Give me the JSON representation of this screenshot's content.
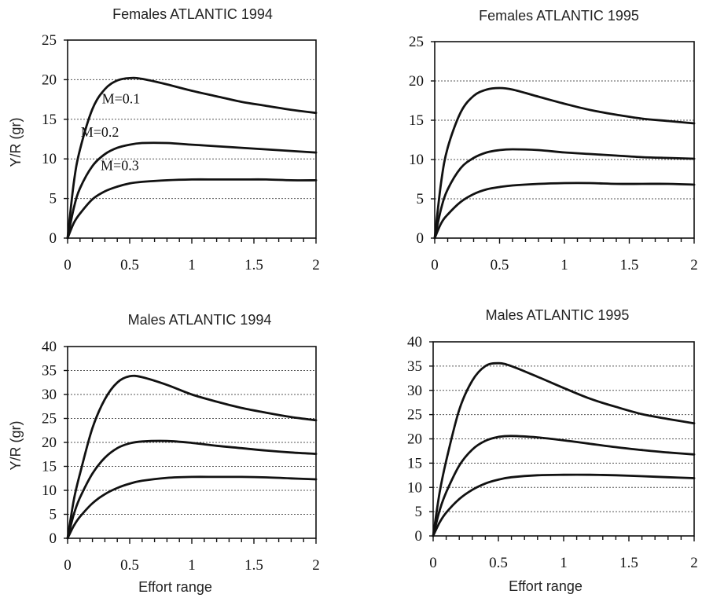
{
  "chart_data": [
    {
      "type": "line",
      "title": "Females ATLANTIC 1994",
      "xlabel": "",
      "ylabel": "Y/R (gr)",
      "xlim": [
        0,
        2
      ],
      "ylim": [
        0,
        25
      ],
      "xticks": [
        0,
        0.5,
        1,
        1.5,
        2
      ],
      "xtick_labels": [
        "0",
        "0.5",
        "1",
        "1.5",
        "2"
      ],
      "yticks": [
        0,
        5,
        10,
        15,
        20,
        25
      ],
      "ytick_labels": [
        "0",
        "5",
        "10",
        "15",
        "20",
        "25"
      ],
      "grid": "horizontal-dotted",
      "x": [
        0,
        0.05,
        0.1,
        0.2,
        0.3,
        0.4,
        0.5,
        0.6,
        0.8,
        1.0,
        1.2,
        1.4,
        1.6,
        1.8,
        2.0
      ],
      "series": [
        {
          "name": "M=0.1",
          "values": [
            0,
            7.0,
            11.2,
            16.3,
            18.8,
            19.9,
            20.2,
            20.1,
            19.4,
            18.6,
            17.9,
            17.2,
            16.7,
            16.2,
            15.8
          ]
        },
        {
          "name": "M=0.2",
          "values": [
            0,
            3.8,
            6.3,
            9.1,
            10.6,
            11.4,
            11.8,
            12.0,
            12.0,
            11.8,
            11.6,
            11.4,
            11.2,
            11.0,
            10.8
          ]
        },
        {
          "name": "M=0.3",
          "values": [
            0,
            1.9,
            3.1,
            4.9,
            5.9,
            6.5,
            6.9,
            7.1,
            7.3,
            7.4,
            7.4,
            7.4,
            7.4,
            7.3,
            7.3
          ]
        }
      ],
      "annotations": [
        {
          "text": "M=0.1",
          "x": 0.43,
          "y": 17.0
        },
        {
          "text": "M=0.2",
          "x": 0.26,
          "y": 12.8
        },
        {
          "text": "M=0.3",
          "x": 0.42,
          "y": 8.6
        }
      ]
    },
    {
      "type": "line",
      "title": "Females ATLANTIC 1995",
      "xlabel": "",
      "ylabel": "",
      "xlim": [
        0,
        2
      ],
      "ylim": [
        0,
        25
      ],
      "xticks": [
        0,
        0.5,
        1,
        1.5,
        2
      ],
      "xtick_labels": [
        "0",
        "0.5",
        "1",
        "1.5",
        "2"
      ],
      "yticks": [
        0,
        5,
        10,
        15,
        20,
        25
      ],
      "ytick_labels": [
        "0",
        "5",
        "10",
        "15",
        "20",
        "25"
      ],
      "grid": "horizontal-dotted",
      "x": [
        0,
        0.05,
        0.1,
        0.2,
        0.3,
        0.4,
        0.5,
        0.6,
        0.8,
        1.0,
        1.2,
        1.4,
        1.6,
        1.8,
        2.0
      ],
      "series": [
        {
          "name": "",
          "values": [
            0,
            7.2,
            11.5,
            16.0,
            18.1,
            18.9,
            19.1,
            18.9,
            18.0,
            17.1,
            16.3,
            15.7,
            15.2,
            14.9,
            14.6
          ]
        },
        {
          "name": "",
          "values": [
            0,
            3.8,
            6.2,
            8.9,
            10.2,
            10.9,
            11.2,
            11.3,
            11.2,
            10.9,
            10.7,
            10.5,
            10.3,
            10.2,
            10.1
          ]
        },
        {
          "name": "",
          "values": [
            0,
            1.9,
            3.0,
            4.6,
            5.6,
            6.2,
            6.5,
            6.7,
            6.9,
            7.0,
            7.0,
            6.9,
            6.9,
            6.9,
            6.8
          ]
        }
      ],
      "annotations": []
    },
    {
      "type": "line",
      "title": "Males ATLANTIC 1994",
      "xlabel": "Effort range",
      "ylabel": "Y/R (gr)",
      "xlim": [
        0,
        2
      ],
      "ylim": [
        0,
        40
      ],
      "xticks": [
        0,
        0.5,
        1,
        1.5,
        2
      ],
      "xtick_labels": [
        "0",
        "0.5",
        "1",
        "1.5",
        "2"
      ],
      "yticks": [
        0,
        5,
        10,
        15,
        20,
        25,
        30,
        35,
        40
      ],
      "ytick_labels": [
        "0",
        "5",
        "10",
        "15",
        "20",
        "25",
        "30",
        "35",
        "40"
      ],
      "grid": "horizontal-dotted",
      "x": [
        0,
        0.05,
        0.1,
        0.2,
        0.3,
        0.4,
        0.5,
        0.6,
        0.8,
        1.0,
        1.2,
        1.4,
        1.6,
        1.8,
        2.0
      ],
      "series": [
        {
          "name": "",
          "values": [
            0,
            8.0,
            13.5,
            23.0,
            29.0,
            32.5,
            33.8,
            33.6,
            32.0,
            30.0,
            28.5,
            27.2,
            26.2,
            25.3,
            24.6
          ]
        },
        {
          "name": "",
          "values": [
            0,
            5.0,
            8.5,
            13.5,
            16.8,
            18.8,
            19.8,
            20.2,
            20.3,
            19.9,
            19.3,
            18.8,
            18.3,
            17.9,
            17.6
          ]
        },
        {
          "name": "",
          "values": [
            0,
            2.6,
            4.5,
            7.3,
            9.2,
            10.5,
            11.4,
            12.0,
            12.6,
            12.8,
            12.8,
            12.8,
            12.7,
            12.5,
            12.3
          ]
        }
      ],
      "annotations": []
    },
    {
      "type": "line",
      "title": "Males ATLANTIC 1995",
      "xlabel": "Effort range",
      "ylabel": "",
      "xlim": [
        0,
        2
      ],
      "ylim": [
        0,
        40
      ],
      "xticks": [
        0,
        0.5,
        1,
        1.5,
        2
      ],
      "xtick_labels": [
        "0",
        "0.5",
        "1",
        "1.5",
        "2"
      ],
      "yticks": [
        0,
        5,
        10,
        15,
        20,
        25,
        30,
        35,
        40
      ],
      "ytick_labels": [
        "0",
        "5",
        "10",
        "15",
        "20",
        "25",
        "30",
        "35",
        "40"
      ],
      "grid": "horizontal-dotted",
      "x": [
        0,
        0.05,
        0.1,
        0.2,
        0.3,
        0.4,
        0.5,
        0.6,
        0.8,
        1.0,
        1.2,
        1.4,
        1.6,
        1.8,
        2.0
      ],
      "series": [
        {
          "name": "",
          "values": [
            0,
            9.0,
            15.5,
            26.0,
            32.0,
            35.0,
            35.6,
            35.0,
            32.8,
            30.5,
            28.3,
            26.6,
            25.1,
            24.1,
            23.2
          ]
        },
        {
          "name": "",
          "values": [
            0,
            5.3,
            9.0,
            14.5,
            17.8,
            19.6,
            20.4,
            20.6,
            20.3,
            19.7,
            19.0,
            18.3,
            17.7,
            17.2,
            16.8
          ]
        },
        {
          "name": "",
          "values": [
            0,
            2.8,
            4.8,
            7.6,
            9.5,
            10.8,
            11.6,
            12.1,
            12.5,
            12.6,
            12.6,
            12.5,
            12.3,
            12.1,
            11.9
          ]
        }
      ],
      "annotations": []
    }
  ]
}
